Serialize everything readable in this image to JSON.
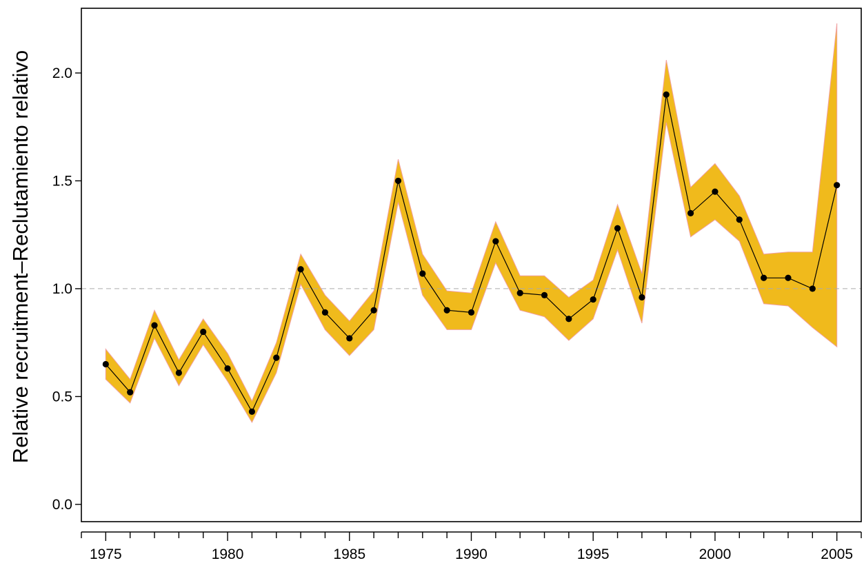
{
  "chart_data": {
    "type": "line",
    "ylabel": "Relative recruitment–Reclutamiento relativo",
    "xlim": [
      1974.0,
      2006.0
    ],
    "ylim": [
      -0.08,
      2.3
    ],
    "x_ticks_major": [
      1975,
      1980,
      1985,
      1990,
      1995,
      2000,
      2005
    ],
    "y_ticks": [
      0.0,
      0.5,
      1.0,
      1.5,
      2.0
    ],
    "y_tick_labels": [
      "0.0",
      "0.5",
      "1.0",
      "1.5",
      "2.0"
    ],
    "x_tick_labels": [
      "1975",
      "1980",
      "1985",
      "1990",
      "1995",
      "2000",
      "2005"
    ],
    "reference_line": {
      "y": 1.0,
      "style": "dashed"
    },
    "series": [
      {
        "x": [
          1975,
          1976,
          1977,
          1978,
          1979,
          1980,
          1981,
          1982,
          1983,
          1984,
          1985,
          1986,
          1987,
          1988,
          1989,
          1990,
          1991,
          1992,
          1993,
          1994,
          1995,
          1996,
          1997,
          1998,
          1999,
          2000,
          2001,
          2002,
          2003,
          2004,
          2005
        ],
        "values": [
          0.65,
          0.52,
          0.83,
          0.61,
          0.8,
          0.63,
          0.43,
          0.68,
          1.09,
          0.89,
          0.77,
          0.9,
          1.5,
          1.07,
          0.9,
          0.89,
          1.22,
          0.98,
          0.97,
          0.86,
          0.95,
          1.28,
          0.96,
          1.9,
          1.35,
          1.45,
          1.32,
          1.05,
          1.05,
          1.0,
          1.48
        ],
        "lower": [
          0.58,
          0.47,
          0.77,
          0.55,
          0.74,
          0.57,
          0.38,
          0.61,
          1.02,
          0.81,
          0.69,
          0.81,
          1.4,
          0.97,
          0.81,
          0.81,
          1.12,
          0.9,
          0.87,
          0.76,
          0.86,
          1.18,
          0.84,
          1.77,
          1.24,
          1.32,
          1.22,
          0.93,
          0.92,
          0.82,
          0.73
        ],
        "upper": [
          0.72,
          0.58,
          0.9,
          0.67,
          0.86,
          0.7,
          0.48,
          0.75,
          1.16,
          0.97,
          0.85,
          0.99,
          1.6,
          1.16,
          0.99,
          0.98,
          1.31,
          1.06,
          1.06,
          0.96,
          1.04,
          1.39,
          1.07,
          2.06,
          1.47,
          1.58,
          1.43,
          1.16,
          1.17,
          1.17,
          2.23
        ]
      }
    ],
    "colors": {
      "band": "#f0ba1c",
      "band_edge": "#f0a0a0",
      "line": "#000000",
      "ref_line": "#aaaaaa"
    },
    "grid": false,
    "legend": "none"
  }
}
